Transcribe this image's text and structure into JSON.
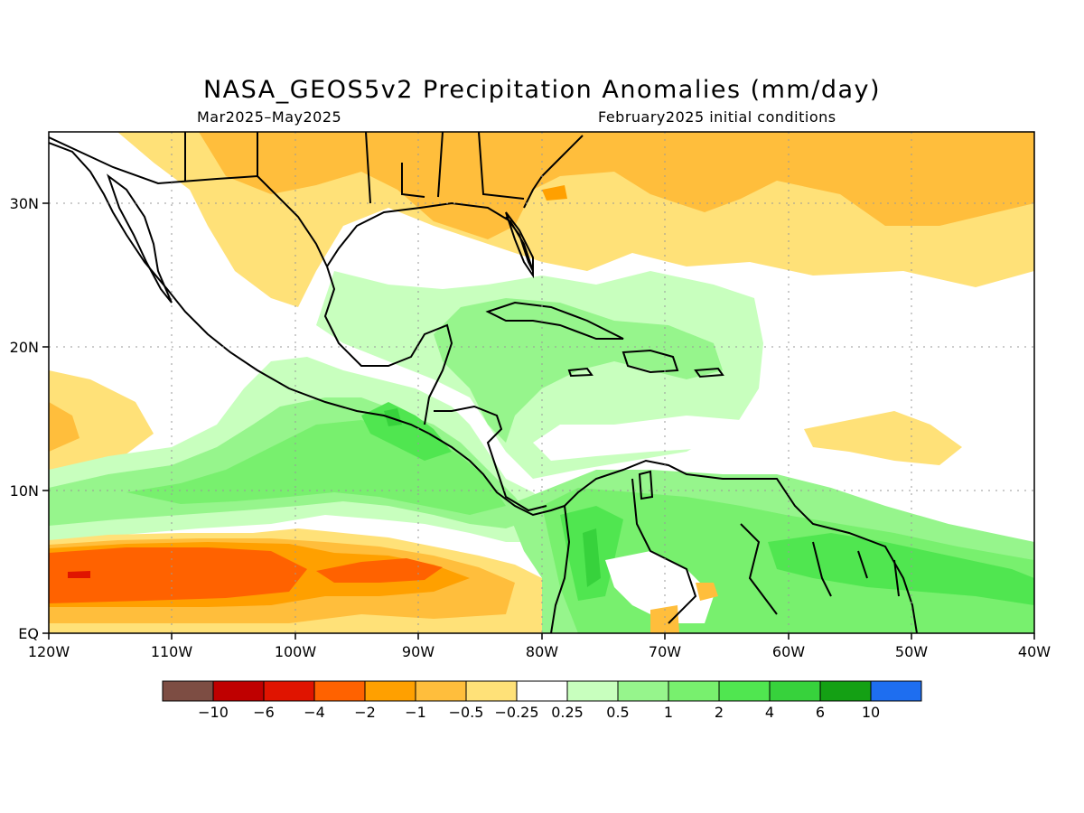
{
  "title": "NASA_GEOS5v2 Precipitation Anomalies (mm/day)",
  "subtitle_left": "Mar2025–May2025",
  "subtitle_right": "February2025 initial conditions",
  "lon_labels": [
    "120W",
    "110W",
    "100W",
    "90W",
    "80W",
    "70W",
    "60W",
    "50W",
    "40W"
  ],
  "lat_labels": [
    "30N",
    "20N",
    "10N",
    "EQ"
  ],
  "colorbar": {
    "colors": [
      "#7d4d43",
      "#bf0000",
      "#e01400",
      "#ff6200",
      "#ffa000",
      "#ffbe3c",
      "#ffe178",
      "#ffffff",
      "#c8ffbe",
      "#96f58c",
      "#78f06e",
      "#50e650",
      "#37d23c",
      "#14a014",
      "#1e6ef0"
    ],
    "labels": [
      "−10",
      "−6",
      "−4",
      "−2",
      "−1",
      "−0.5",
      "−0.25",
      "0.25",
      "0.5",
      "1",
      "2",
      "4",
      "6",
      "10"
    ]
  }
}
